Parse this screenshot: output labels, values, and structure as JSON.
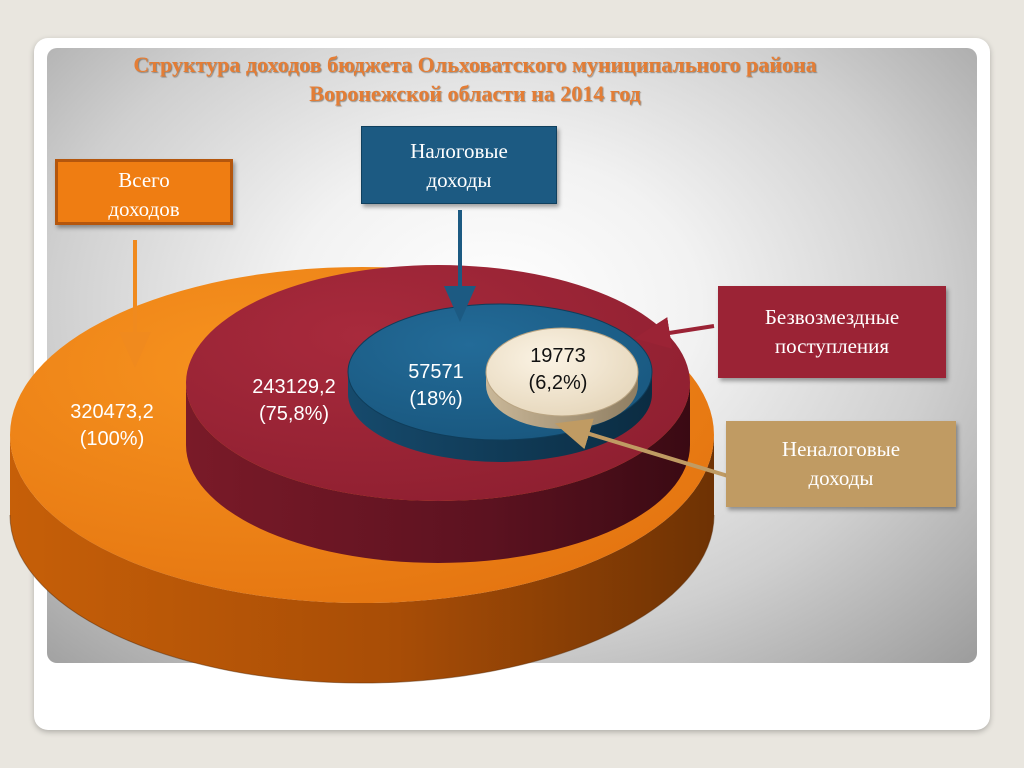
{
  "slide": {
    "title_line1": "Структура доходов бюджета Ольховатского муниципального района",
    "title_line2": "Воронежской области на 2014 год"
  },
  "labels": {
    "total_line1": "Всего",
    "total_line2": "доходов",
    "tax_line1": "Налоговые",
    "tax_line2": "доходы",
    "free_line1": "Безвозмездные",
    "free_line2": "поступления",
    "nontax_line1": "Неналоговые",
    "nontax_line2": "доходы"
  },
  "values": {
    "total_amount": "320473,2",
    "total_share": "(100%)",
    "free_amount": "243129,2",
    "free_share": "(75,8%)",
    "tax_amount": "57571",
    "tax_share": "(18%)",
    "nontax_amount": "19773",
    "nontax_share": "(6,2%)"
  },
  "colors": {
    "total": "#ef7d12",
    "free": "#9b2335",
    "tax": "#1c5a82",
    "nontax": "#ede0c8",
    "title": "#e47d35"
  }
}
